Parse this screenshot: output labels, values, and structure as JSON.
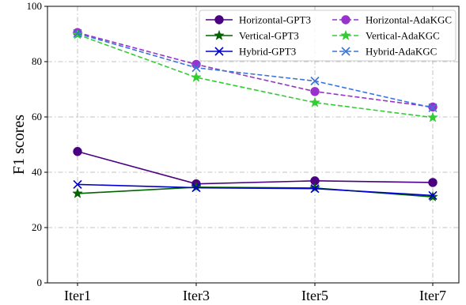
{
  "chart_data": {
    "type": "line",
    "title": "",
    "xlabel": "",
    "ylabel": "F1 scores",
    "categories": [
      "Iter1",
      "Iter3",
      "Iter5",
      "Iter7"
    ],
    "ylim": [
      0,
      100
    ],
    "yticks": [
      "0",
      "20",
      "40",
      "60",
      "80",
      "100"
    ],
    "grid": true,
    "legend_position": "top-right",
    "series": [
      {
        "name": "Horizontal-GPT3",
        "values": [
          47.5,
          35.8,
          36.9,
          36.3
        ],
        "color": "#4b0082",
        "style": "solid",
        "marker": "circle"
      },
      {
        "name": "Vertical-GPT3",
        "values": [
          32.3,
          34.6,
          34.3,
          31.1
        ],
        "color": "#006400",
        "style": "solid",
        "marker": "star"
      },
      {
        "name": "Hybrid-GPT3",
        "values": [
          35.6,
          34.4,
          34.1,
          31.6
        ],
        "color": "#0000cd",
        "style": "solid",
        "marker": "x"
      },
      {
        "name": "Horizontal-AdaKGC",
        "values": [
          90.5,
          79.0,
          69.2,
          63.6
        ],
        "color": "#9932cc",
        "style": "dashed",
        "marker": "circle"
      },
      {
        "name": "Vertical-AdaKGC",
        "values": [
          89.8,
          74.3,
          65.2,
          59.8
        ],
        "color": "#32cd32",
        "style": "dashed",
        "marker": "star"
      },
      {
        "name": "Hybrid-AdaKGC",
        "values": [
          90.2,
          77.8,
          73.0,
          63.3
        ],
        "color": "#3a75d6",
        "style": "dashed",
        "marker": "x"
      }
    ]
  }
}
